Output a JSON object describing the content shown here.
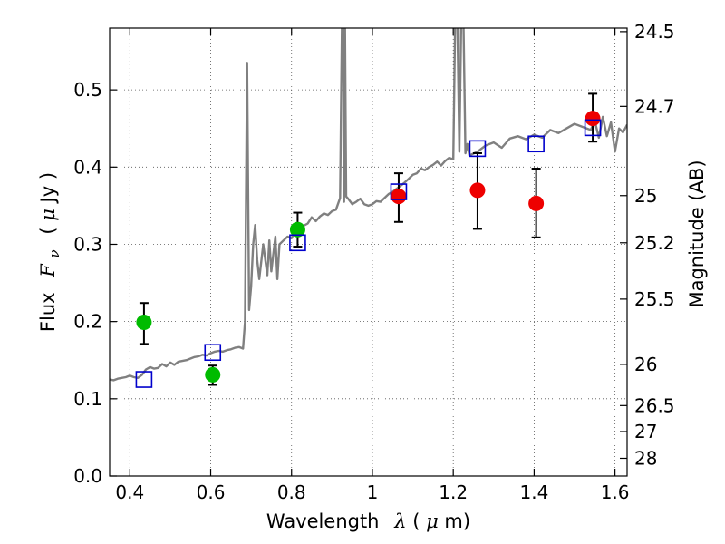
{
  "chart_data": {
    "type": "scatter",
    "title": "",
    "xlabel": {
      "prefix": "Wavelength",
      "symbol": "λ",
      "unit_open": " (",
      "unit_mu": "μ",
      "unit_close": "m)"
    },
    "ylabel": {
      "prefix": "Flux",
      "symbol_F": "F",
      "symbol_sub": "ν",
      "unit_open": "( ",
      "unit_mu": "μ",
      "unit_close": "Jy )"
    },
    "y2label": "Magnitude (AB)",
    "xlim": [
      0.35,
      1.63
    ],
    "ylim": [
      0.0,
      0.58
    ],
    "grid": true,
    "x_ticks": [
      0.4,
      0.6,
      0.8,
      1.0,
      1.2,
      1.4,
      1.6
    ],
    "x_tick_labels": [
      "0.4",
      "0.6",
      "0.8",
      "1",
      "1.2",
      "1.4",
      "1.6"
    ],
    "y_ticks": [
      0.0,
      0.1,
      0.2,
      0.3,
      0.4,
      0.5
    ],
    "y_tick_labels": [
      "0.0",
      "0.1",
      "0.2",
      "0.3",
      "0.4",
      "0.5"
    ],
    "y2_ticks": [
      {
        "label": "24.5",
        "mag": 24.5
      },
      {
        "label": "24.7",
        "mag": 24.7
      },
      {
        "label": "25",
        "mag": 25.0
      },
      {
        "label": "25.2",
        "mag": 25.2
      },
      {
        "label": "25.5",
        "mag": 25.5
      },
      {
        "label": "26",
        "mag": 26.0
      },
      {
        "label": "26.5",
        "mag": 26.5
      },
      {
        "label": "27",
        "mag": 27.0
      },
      {
        "label": "28",
        "mag": 28.0
      }
    ],
    "colors": {
      "model": "#808080",
      "green_points": "#00bb00",
      "red_points": "#ee0000",
      "squares": "#0000cc",
      "errorbars": "#000000",
      "grid": "#555555"
    },
    "model_spectrum": {
      "x": [
        0.35,
        0.36,
        0.37,
        0.38,
        0.39,
        0.4,
        0.41,
        0.42,
        0.43,
        0.44,
        0.45,
        0.46,
        0.47,
        0.48,
        0.49,
        0.5,
        0.51,
        0.52,
        0.53,
        0.54,
        0.55,
        0.56,
        0.57,
        0.58,
        0.59,
        0.6,
        0.61,
        0.62,
        0.63,
        0.64,
        0.65,
        0.66,
        0.67,
        0.68,
        0.685,
        0.69,
        0.695,
        0.7,
        0.705,
        0.71,
        0.715,
        0.72,
        0.73,
        0.74,
        0.745,
        0.75,
        0.76,
        0.765,
        0.77,
        0.78,
        0.79,
        0.8,
        0.81,
        0.82,
        0.83,
        0.84,
        0.85,
        0.86,
        0.87,
        0.88,
        0.89,
        0.9,
        0.91,
        0.92,
        0.925,
        0.928,
        0.93,
        0.932,
        0.935,
        0.94,
        0.95,
        0.96,
        0.97,
        0.98,
        0.99,
        1.0,
        1.01,
        1.02,
        1.03,
        1.04,
        1.05,
        1.06,
        1.07,
        1.08,
        1.09,
        1.1,
        1.11,
        1.12,
        1.13,
        1.14,
        1.15,
        1.16,
        1.17,
        1.18,
        1.19,
        1.2,
        1.205,
        1.21,
        1.215,
        1.22,
        1.225,
        1.23,
        1.235,
        1.24,
        1.26,
        1.28,
        1.3,
        1.32,
        1.34,
        1.36,
        1.38,
        1.4,
        1.42,
        1.44,
        1.46,
        1.48,
        1.5,
        1.52,
        1.54,
        1.55,
        1.56,
        1.57,
        1.58,
        1.59,
        1.6,
        1.61,
        1.62,
        1.63
      ],
      "y": [
        0.125,
        0.124,
        0.126,
        0.127,
        0.128,
        0.13,
        0.128,
        0.127,
        0.131,
        0.138,
        0.141,
        0.139,
        0.14,
        0.145,
        0.142,
        0.147,
        0.144,
        0.148,
        0.149,
        0.15,
        0.152,
        0.154,
        0.155,
        0.157,
        0.156,
        0.159,
        0.161,
        0.162,
        0.161,
        0.163,
        0.164,
        0.166,
        0.167,
        0.165,
        0.2,
        0.535,
        0.215,
        0.245,
        0.3,
        0.325,
        0.28,
        0.255,
        0.3,
        0.26,
        0.305,
        0.265,
        0.31,
        0.255,
        0.3,
        0.305,
        0.31,
        0.308,
        0.318,
        0.32,
        0.324,
        0.327,
        0.335,
        0.33,
        0.336,
        0.34,
        0.338,
        0.343,
        0.345,
        0.36,
        0.6,
        0.6,
        0.355,
        0.6,
        0.362,
        0.359,
        0.352,
        0.355,
        0.359,
        0.352,
        0.35,
        0.352,
        0.356,
        0.355,
        0.36,
        0.365,
        0.368,
        0.372,
        0.376,
        0.38,
        0.385,
        0.39,
        0.392,
        0.398,
        0.396,
        0.4,
        0.403,
        0.407,
        0.402,
        0.408,
        0.412,
        0.41,
        0.6,
        0.6,
        0.42,
        0.6,
        0.6,
        0.418,
        0.43,
        0.415,
        0.42,
        0.428,
        0.432,
        0.425,
        0.437,
        0.44,
        0.436,
        0.442,
        0.438,
        0.448,
        0.444,
        0.45,
        0.456,
        0.452,
        0.448,
        0.46,
        0.438,
        0.465,
        0.44,
        0.458,
        0.42,
        0.45,
        0.445,
        0.455
      ]
    },
    "series": [
      {
        "marker": "circle",
        "color": "#00bb00",
        "x": [
          0.435,
          0.605,
          0.815
        ],
        "y": [
          0.199,
          0.131,
          0.319
        ],
        "yerr_low": [
          0.028,
          0.013,
          0.022
        ],
        "yerr_high": [
          0.025,
          0.012,
          0.022
        ]
      },
      {
        "marker": "circle",
        "color": "#ee0000",
        "x": [
          1.065,
          1.26,
          1.405,
          1.545
        ],
        "y": [
          0.362,
          0.37,
          0.353,
          0.463
        ],
        "yerr_low": [
          0.033,
          0.05,
          0.044,
          0.03
        ],
        "yerr_high": [
          0.03,
          0.048,
          0.045,
          0.032
        ]
      },
      {
        "marker": "square",
        "color": "#0000cc",
        "x": [
          0.435,
          0.605,
          0.815,
          1.065,
          1.26,
          1.405,
          1.545
        ],
        "y": [
          0.125,
          0.16,
          0.302,
          0.368,
          0.424,
          0.43,
          0.451
        ]
      }
    ]
  }
}
